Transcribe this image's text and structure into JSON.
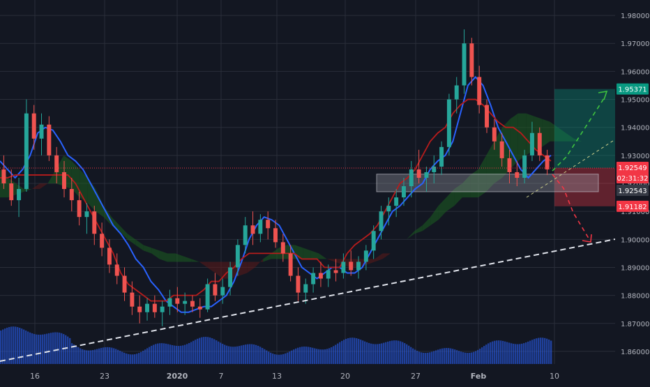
{
  "chart_data": {
    "type": "candlestick",
    "title": "",
    "xlabel": "",
    "ylabel": "",
    "ylim": [
      1.8555,
      1.9855
    ],
    "grid": true,
    "price_ticks": [
      "1.98000",
      "1.97000",
      "1.96000",
      "1.95000",
      "1.94000",
      "1.93000",
      "1.92000",
      "1.91000",
      "1.90000",
      "1.89000",
      "1.88000",
      "1.87000",
      "1.86000"
    ],
    "date_ticks": [
      "16",
      "23",
      "2020",
      "7",
      "13",
      "20",
      "27",
      "Feb",
      "10"
    ],
    "price_tags": {
      "target": "1.95371",
      "last": "1.92549",
      "countdown": "02:31:32",
      "bid": "1.92543",
      "stop": "1.91182"
    },
    "current_price": 1.92549,
    "series": [
      {
        "name": "tenkan",
        "values": [
          1.928,
          1.925,
          1.922,
          1.925,
          1.93,
          1.938,
          1.94,
          1.939,
          1.935,
          1.93,
          1.928,
          1.925,
          1.92,
          1.915,
          1.91,
          1.905,
          1.902,
          1.898,
          1.893,
          1.89,
          1.885,
          1.882,
          1.878,
          1.876,
          1.874,
          1.874,
          1.875,
          1.876,
          1.876,
          1.878,
          1.88,
          1.885,
          1.892,
          1.9,
          1.905,
          1.908,
          1.907,
          1.905,
          1.9,
          1.895,
          1.89,
          1.888,
          1.886,
          1.888,
          1.89,
          1.89,
          1.888,
          1.888,
          1.89,
          1.895,
          1.9,
          1.905,
          1.91,
          1.912,
          1.915,
          1.918,
          1.92,
          1.925,
          1.928,
          1.93,
          1.935,
          1.945,
          1.955,
          1.958,
          1.955,
          1.948,
          1.94,
          1.935,
          1.93,
          1.925,
          1.922,
          1.925,
          1.928,
          1.93
        ]
      },
      {
        "name": "kijun",
        "values": [
          1.922,
          1.922,
          1.923,
          1.923,
          1.923,
          1.923,
          1.923,
          1.923,
          1.923,
          1.923,
          1.92,
          1.915,
          1.91,
          1.905,
          1.9,
          1.895,
          1.888,
          1.884,
          1.882,
          1.88,
          1.878,
          1.878,
          1.878,
          1.88,
          1.88,
          1.88,
          1.88,
          1.882,
          1.885,
          1.885,
          1.888,
          1.89,
          1.893,
          1.895,
          1.895,
          1.895,
          1.895,
          1.895,
          1.895,
          1.895,
          1.893,
          1.893,
          1.893,
          1.89,
          1.89,
          1.89,
          1.895,
          1.898,
          1.9,
          1.902,
          1.905,
          1.91,
          1.915,
          1.92,
          1.922,
          1.925,
          1.93,
          1.935,
          1.938,
          1.94,
          1.945,
          1.948,
          1.95,
          1.95,
          1.948,
          1.945,
          1.942,
          1.94,
          1.94,
          1.938,
          1.935,
          1.932,
          1.93,
          1.928
        ]
      },
      {
        "name": "senkou_a",
        "values": [
          1.925,
          1.922,
          1.92,
          1.918,
          1.918,
          1.918,
          1.92,
          1.925,
          1.93,
          1.928,
          1.925,
          1.922,
          1.918,
          1.912,
          1.908,
          1.905,
          1.902,
          1.9,
          1.898,
          1.897,
          1.896,
          1.895,
          1.895,
          1.894,
          1.893,
          1.892,
          1.89,
          1.888,
          1.886,
          1.886,
          1.887,
          1.888,
          1.89,
          1.893,
          1.895,
          1.897,
          1.898,
          1.898,
          1.897,
          1.896,
          1.895,
          1.893,
          1.892,
          1.891,
          1.89,
          1.89,
          1.891,
          1.892,
          1.893,
          1.895,
          1.898,
          1.9,
          1.903,
          1.905,
          1.908,
          1.912,
          1.915,
          1.918,
          1.92,
          1.923,
          1.925,
          1.93,
          1.935,
          1.94,
          1.943,
          1.945,
          1.945,
          1.944,
          1.943,
          1.942,
          1.94,
          1.938,
          1.936,
          1.935,
          1.935,
          1.935,
          1.935,
          1.935
        ]
      },
      {
        "name": "senkou_b",
        "values": [
          1.915,
          1.915,
          1.916,
          1.917,
          1.918,
          1.92,
          1.92,
          1.92,
          1.919,
          1.918,
          1.915,
          1.913,
          1.91,
          1.908,
          1.905,
          1.903,
          1.9,
          1.898,
          1.896,
          1.895,
          1.893,
          1.892,
          1.892,
          1.892,
          1.892,
          1.892,
          1.892,
          1.892,
          1.892,
          1.892,
          1.892,
          1.892,
          1.892,
          1.892,
          1.893,
          1.893,
          1.893,
          1.893,
          1.893,
          1.893,
          1.893,
          1.893,
          1.893,
          1.893,
          1.893,
          1.893,
          1.893,
          1.893,
          1.895,
          1.895,
          1.898,
          1.9,
          1.902,
          1.903,
          1.905,
          1.907,
          1.91,
          1.912,
          1.915,
          1.915,
          1.915,
          1.917,
          1.92,
          1.922,
          1.925,
          1.928,
          1.93,
          1.932,
          1.933,
          1.935,
          1.935,
          1.935,
          1.935,
          1.935,
          1.935,
          1.935,
          1.935,
          1.935
        ]
      }
    ],
    "candles": [
      [
        1.925,
        1.93,
        1.918,
        1.92
      ],
      [
        1.92,
        1.925,
        1.912,
        1.914
      ],
      [
        1.914,
        1.922,
        1.908,
        1.918
      ],
      [
        1.918,
        1.95,
        1.917,
        1.945
      ],
      [
        1.945,
        1.948,
        1.932,
        1.936
      ],
      [
        1.936,
        1.945,
        1.93,
        1.941
      ],
      [
        1.941,
        1.944,
        1.928,
        1.93
      ],
      [
        1.93,
        1.933,
        1.92,
        1.924
      ],
      [
        1.924,
        1.928,
        1.915,
        1.918
      ],
      [
        1.918,
        1.922,
        1.91,
        1.914
      ],
      [
        1.914,
        1.917,
        1.905,
        1.908
      ],
      [
        1.908,
        1.913,
        1.902,
        1.91
      ],
      [
        1.91,
        1.912,
        1.898,
        1.902
      ],
      [
        1.902,
        1.906,
        1.894,
        1.897
      ],
      [
        1.897,
        1.9,
        1.888,
        1.891
      ],
      [
        1.891,
        1.895,
        1.884,
        1.887
      ],
      [
        1.887,
        1.89,
        1.878,
        1.881
      ],
      [
        1.881,
        1.885,
        1.873,
        1.876
      ],
      [
        1.876,
        1.88,
        1.87,
        1.874
      ],
      [
        1.874,
        1.879,
        1.871,
        1.877
      ],
      [
        1.877,
        1.88,
        1.872,
        1.874
      ],
      [
        1.874,
        1.878,
        1.869,
        1.876
      ],
      [
        1.876,
        1.882,
        1.873,
        1.879
      ],
      [
        1.879,
        1.883,
        1.874,
        1.877
      ],
      [
        1.877,
        1.881,
        1.873,
        1.878
      ],
      [
        1.878,
        1.88,
        1.874,
        1.876
      ],
      [
        1.876,
        1.879,
        1.872,
        1.875
      ],
      [
        1.875,
        1.886,
        1.874,
        1.884
      ],
      [
        1.884,
        1.888,
        1.878,
        1.88
      ],
      [
        1.88,
        1.886,
        1.877,
        1.883
      ],
      [
        1.883,
        1.892,
        1.88,
        1.89
      ],
      [
        1.89,
        1.9,
        1.887,
        1.898
      ],
      [
        1.898,
        1.908,
        1.895,
        1.905
      ],
      [
        1.905,
        1.91,
        1.898,
        1.902
      ],
      [
        1.902,
        1.909,
        1.899,
        1.907
      ],
      [
        1.907,
        1.91,
        1.9,
        1.904
      ],
      [
        1.904,
        1.907,
        1.897,
        1.899
      ],
      [
        1.899,
        1.902,
        1.892,
        1.895
      ],
      [
        1.895,
        1.898,
        1.885,
        1.887
      ],
      [
        1.887,
        1.89,
        1.878,
        1.881
      ],
      [
        1.881,
        1.886,
        1.877,
        1.884
      ],
      [
        1.884,
        1.89,
        1.881,
        1.888
      ],
      [
        1.888,
        1.892,
        1.883,
        1.886
      ],
      [
        1.886,
        1.891,
        1.883,
        1.889
      ],
      [
        1.889,
        1.893,
        1.885,
        1.888
      ],
      [
        1.888,
        1.895,
        1.886,
        1.892
      ],
      [
        1.892,
        1.896,
        1.887,
        1.889
      ],
      [
        1.889,
        1.894,
        1.886,
        1.892
      ],
      [
        1.892,
        1.898,
        1.889,
        1.896
      ],
      [
        1.896,
        1.905,
        1.893,
        1.903
      ],
      [
        1.903,
        1.912,
        1.9,
        1.91
      ],
      [
        1.91,
        1.915,
        1.905,
        1.912
      ],
      [
        1.912,
        1.918,
        1.908,
        1.915
      ],
      [
        1.915,
        1.922,
        1.912,
        1.919
      ],
      [
        1.919,
        1.928,
        1.915,
        1.925
      ],
      [
        1.925,
        1.932,
        1.92,
        1.922
      ],
      [
        1.922,
        1.926,
        1.917,
        1.924
      ],
      [
        1.924,
        1.93,
        1.92,
        1.926
      ],
      [
        1.926,
        1.935,
        1.923,
        1.933
      ],
      [
        1.933,
        1.952,
        1.93,
        1.95
      ],
      [
        1.95,
        1.958,
        1.945,
        1.955
      ],
      [
        1.955,
        1.975,
        1.952,
        1.97
      ],
      [
        1.97,
        1.972,
        1.955,
        1.958
      ],
      [
        1.958,
        1.962,
        1.945,
        1.948
      ],
      [
        1.948,
        1.95,
        1.938,
        1.94
      ],
      [
        1.94,
        1.943,
        1.932,
        1.935
      ],
      [
        1.935,
        1.938,
        1.926,
        1.929
      ],
      [
        1.929,
        1.932,
        1.92,
        1.924
      ],
      [
        1.924,
        1.928,
        1.919,
        1.922
      ],
      [
        1.922,
        1.932,
        1.92,
        1.93
      ],
      [
        1.93,
        1.942,
        1.928,
        1.938
      ],
      [
        1.938,
        1.94,
        1.928,
        1.93
      ],
      [
        1.93,
        1.932,
        1.923,
        1.925
      ]
    ],
    "annotations": {
      "horizontal_level": 1.92549,
      "resistance_zone": [
        1.9225,
        1.9253
      ],
      "trendline_support": [
        [
          1.8655,
          1.8985
        ]
      ],
      "long_target": 1.95371,
      "short_target": 1.91182
    },
    "colors": {
      "background": "#131722",
      "grid": "#2a2e39",
      "up": "#26a69a",
      "down": "#ef5350",
      "tenkan": "#2962ff",
      "kijun": "#b71c1c",
      "cloud_bull": "#1b5e20",
      "cloud_bear": "#5c1a1a",
      "text": "#b2b5be",
      "target_green": "#089981",
      "stop_red": "#f23645",
      "volume": "#2962ff"
    }
  }
}
